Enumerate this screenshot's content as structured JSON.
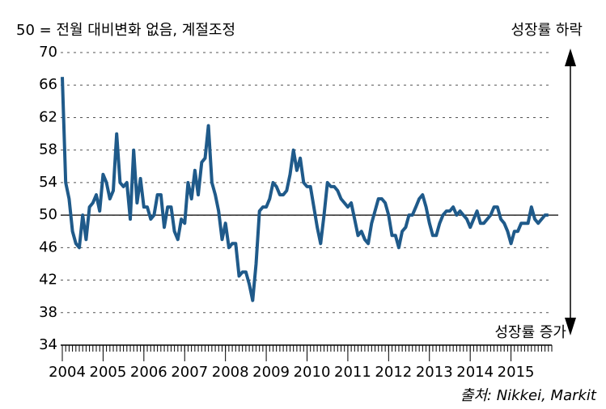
{
  "chart_data": {
    "type": "line",
    "title": "50 = 전월 대비변화 없음, 계절조정",
    "annotations": {
      "top": "성장률 하락",
      "bottom": "성장률 증가",
      "source": "출처: Nikkei, Markit"
    },
    "hline": 50,
    "xlim": [
      2004,
      2016
    ],
    "xticks": [
      2004,
      2005,
      2006,
      2007,
      2008,
      2009,
      2010,
      2011,
      2012,
      2013,
      2014,
      2015
    ],
    "ylim": [
      34,
      70
    ],
    "yticks": [
      34,
      38,
      42,
      46,
      50,
      54,
      58,
      62,
      66,
      70
    ],
    "grid": true,
    "x": [
      2004,
      2004.083,
      2004.167,
      2004.25,
      2004.333,
      2004.417,
      2004.5,
      2004.583,
      2004.667,
      2004.75,
      2004.833,
      2004.917,
      2005,
      2005.083,
      2005.167,
      2005.25,
      2005.333,
      2005.417,
      2005.5,
      2005.583,
      2005.667,
      2005.75,
      2005.833,
      2005.917,
      2006,
      2006.083,
      2006.167,
      2006.25,
      2006.333,
      2006.417,
      2006.5,
      2006.583,
      2006.667,
      2006.75,
      2006.833,
      2006.917,
      2007,
      2007.083,
      2007.167,
      2007.25,
      2007.333,
      2007.417,
      2007.5,
      2007.583,
      2007.667,
      2007.75,
      2007.833,
      2007.917,
      2008,
      2008.083,
      2008.167,
      2008.25,
      2008.333,
      2008.417,
      2008.5,
      2008.583,
      2008.667,
      2008.75,
      2008.833,
      2008.917,
      2009,
      2009.083,
      2009.167,
      2009.25,
      2009.333,
      2009.417,
      2009.5,
      2009.583,
      2009.667,
      2009.75,
      2009.833,
      2009.917,
      2010,
      2010.083,
      2010.167,
      2010.25,
      2010.333,
      2010.417,
      2010.5,
      2010.583,
      2010.667,
      2010.75,
      2010.833,
      2010.917,
      2011,
      2011.083,
      2011.167,
      2011.25,
      2011.333,
      2011.417,
      2011.5,
      2011.583,
      2011.667,
      2011.75,
      2011.833,
      2011.917,
      2012,
      2012.083,
      2012.167,
      2012.25,
      2012.333,
      2012.417,
      2012.5,
      2012.583,
      2012.667,
      2012.75,
      2012.833,
      2012.917,
      2013,
      2013.083,
      2013.167,
      2013.25,
      2013.333,
      2013.417,
      2013.5,
      2013.583,
      2013.667,
      2013.75,
      2013.833,
      2013.917,
      2014,
      2014.083,
      2014.167,
      2014.25,
      2014.333,
      2014.417,
      2014.5,
      2014.583,
      2014.667,
      2014.75,
      2014.833,
      2014.917,
      2015,
      2015.083,
      2015.167,
      2015.25,
      2015.333,
      2015.417,
      2015.5,
      2015.583,
      2015.667,
      2015.75,
      2015.833,
      2015.917
    ],
    "series": [
      {
        "color": "#1f5a8a",
        "values": [
          67,
          54,
          52,
          48,
          46.5,
          46,
          50,
          47,
          51,
          51.5,
          52.5,
          50.5,
          55,
          54,
          52,
          53,
          60,
          54,
          53.5,
          54,
          49.5,
          58,
          51.5,
          54.5,
          51,
          51,
          49.5,
          50,
          52.5,
          52.5,
          48.5,
          51,
          51,
          48,
          47,
          49.5,
          49,
          54,
          52,
          55.5,
          52.5,
          56.5,
          57,
          61,
          54,
          52.5,
          50.5,
          47,
          49,
          46,
          46.5,
          46.5,
          42.5,
          43,
          43,
          41.5,
          39.5,
          44,
          50.5,
          51,
          51,
          52,
          54,
          53.5,
          52.5,
          52.5,
          53,
          55,
          58,
          55.5,
          57,
          54,
          53.5,
          53.5,
          51,
          48.5,
          46.5,
          50,
          54,
          53.5,
          53.5,
          53,
          52,
          51.5,
          51,
          51.5,
          49.5,
          47.5,
          48,
          47,
          46.5,
          49,
          50.5,
          52,
          52,
          51.5,
          50,
          47.5,
          47.5,
          46,
          48,
          48.5,
          50,
          50,
          51,
          52,
          52.5,
          51,
          49,
          47.5,
          47.5,
          49,
          50,
          50.5,
          50.5,
          51,
          50,
          50.5,
          50,
          49.5,
          48.5,
          49.5,
          50.5,
          49,
          49,
          49.5,
          50,
          51,
          51,
          49.5,
          49,
          48,
          46.5,
          48,
          48,
          49,
          49,
          49,
          51,
          49.5,
          49,
          49.5,
          50,
          50
        ]
      }
    ]
  }
}
